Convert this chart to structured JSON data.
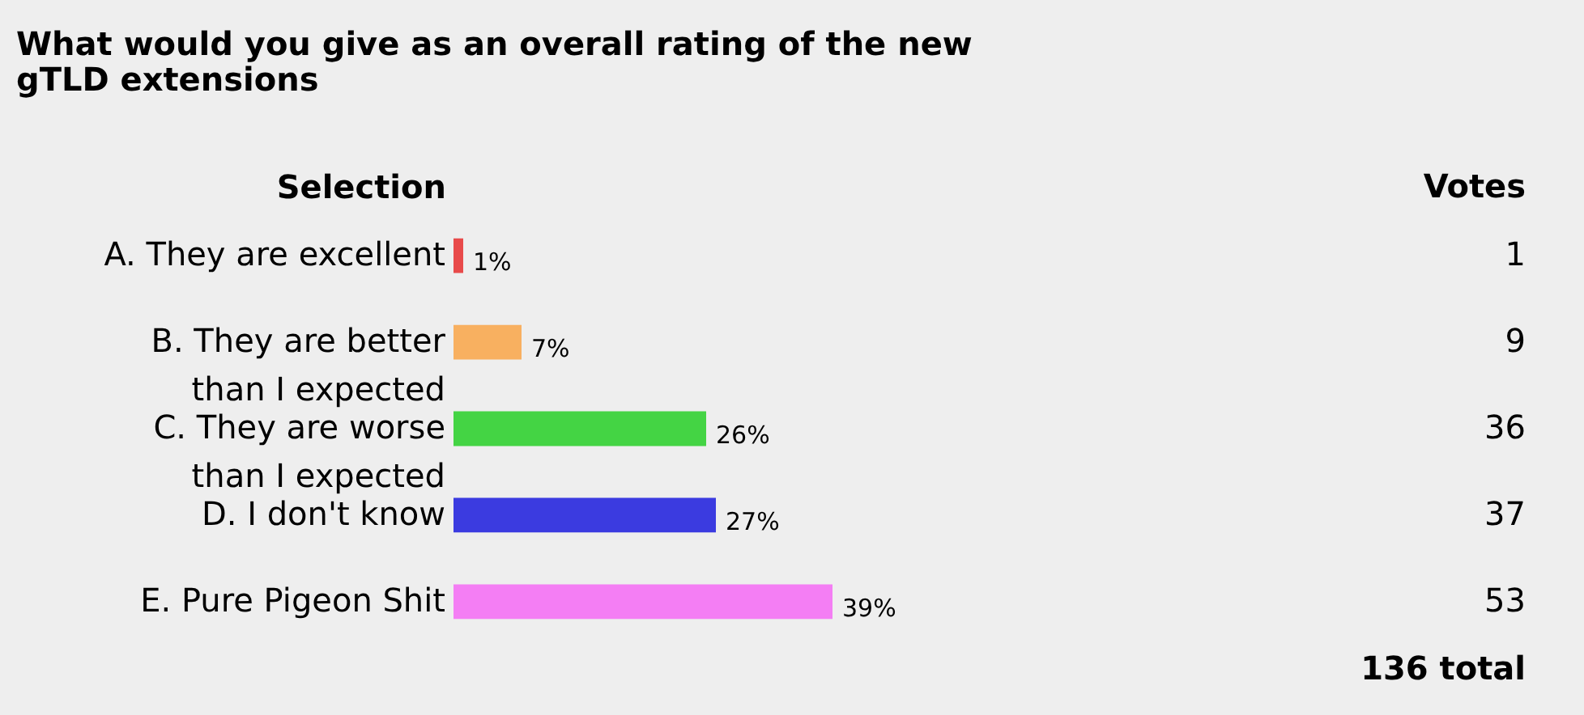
{
  "chart_data": {
    "type": "bar",
    "orientation": "horizontal",
    "title": "What would you give as an overall rating of the new gTLD extensions",
    "ylabel": "Selection",
    "categories": [
      "A. They are excellent",
      "B. They are better than I expected",
      "C. They are worse than I expected",
      "D. I don't know",
      "E. Pure Pigeon Shit"
    ],
    "values": [
      1,
      7,
      26,
      27,
      39
    ],
    "colors": [
      "#e84a4a",
      "#f8b060",
      "#44d444",
      "#3b3be0",
      "#f47ef4"
    ],
    "value_labels": [
      "1%",
      "7%",
      "26%",
      "27%",
      "39%"
    ],
    "annotations": [
      "Votes",
      "1",
      "9",
      "36",
      "37",
      "53",
      "136 total"
    ]
  }
}
